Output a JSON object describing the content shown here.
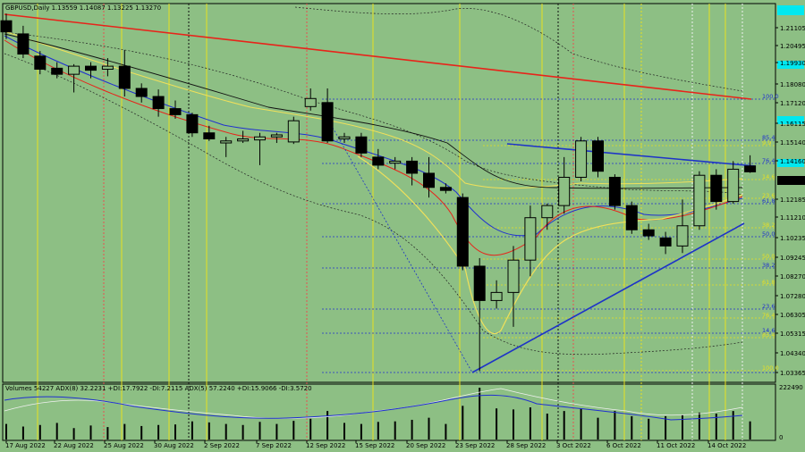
{
  "chart_data": {
    "type": "candlestick",
    "title": "GBPUSD,Daily  1.13559 1.14087 1.13225 1.13270",
    "current_price_label": "1.13270",
    "price_ticks": [
      "1.21105",
      "1.20495",
      "1.19930",
      "1.19370",
      "1.18080",
      "1.17120",
      "1.16115",
      "1.15140",
      "1.14160",
      "1.13270",
      "1.12185",
      "1.11210",
      "1.10235",
      "1.09245",
      "1.08270",
      "1.07280",
      "1.06305",
      "1.05315",
      "1.04340",
      "1.03365"
    ],
    "date_ticks": [
      "17 Aug 2022",
      "22 Aug 2022",
      "25 Aug 2022",
      "30 Aug 2022",
      "2 Sep 2022",
      "7 Sep 2022",
      "12 Sep 2022",
      "15 Sep 2022",
      "20 Sep 2022",
      "23 Sep 2022",
      "28 Sep 2022",
      "3 Oct 2022",
      "6 Oct 2022",
      "11 Oct 2022",
      "14 Oct 2022"
    ],
    "candles": [
      {
        "o": 1.2075,
        "h": 1.211,
        "l": 1.1985,
        "c": 1.202
      },
      {
        "o": 1.201,
        "h": 1.205,
        "l": 1.189,
        "c": 1.191
      },
      {
        "o": 1.19,
        "h": 1.1925,
        "l": 1.181,
        "c": 1.1835
      },
      {
        "o": 1.184,
        "h": 1.187,
        "l": 1.179,
        "c": 1.181
      },
      {
        "o": 1.181,
        "h": 1.186,
        "l": 1.172,
        "c": 1.185
      },
      {
        "o": 1.185,
        "h": 1.187,
        "l": 1.179,
        "c": 1.183
      },
      {
        "o": 1.1835,
        "h": 1.189,
        "l": 1.18,
        "c": 1.185
      },
      {
        "o": 1.185,
        "h": 1.193,
        "l": 1.17,
        "c": 1.174
      },
      {
        "o": 1.174,
        "h": 1.1765,
        "l": 1.167,
        "c": 1.17
      },
      {
        "o": 1.17,
        "h": 1.1735,
        "l": 1.16,
        "c": 1.164
      },
      {
        "o": 1.164,
        "h": 1.168,
        "l": 1.159,
        "c": 1.161
      },
      {
        "o": 1.161,
        "h": 1.162,
        "l": 1.15,
        "c": 1.152
      },
      {
        "o": 1.152,
        "h": 1.1555,
        "l": 1.148,
        "c": 1.149
      },
      {
        "o": 1.147,
        "h": 1.15,
        "l": 1.14,
        "c": 1.148
      },
      {
        "o": 1.148,
        "h": 1.153,
        "l": 1.147,
        "c": 1.149
      },
      {
        "o": 1.1485,
        "h": 1.152,
        "l": 1.136,
        "c": 1.15
      },
      {
        "o": 1.15,
        "h": 1.152,
        "l": 1.147,
        "c": 1.151
      },
      {
        "o": 1.1475,
        "h": 1.16,
        "l": 1.1465,
        "c": 1.158
      },
      {
        "o": 1.165,
        "h": 1.174,
        "l": 1.163,
        "c": 1.169
      },
      {
        "o": 1.167,
        "h": 1.174,
        "l": 1.147,
        "c": 1.148
      },
      {
        "o": 1.149,
        "h": 1.152,
        "l": 1.147,
        "c": 1.15
      },
      {
        "o": 1.15,
        "h": 1.152,
        "l": 1.14,
        "c": 1.142
      },
      {
        "o": 1.14,
        "h": 1.144,
        "l": 1.134,
        "c": 1.136
      },
      {
        "o": 1.137,
        "h": 1.14,
        "l": 1.134,
        "c": 1.138
      },
      {
        "o": 1.138,
        "h": 1.14,
        "l": 1.126,
        "c": 1.132
      },
      {
        "o": 1.132,
        "h": 1.14,
        "l": 1.12,
        "c": 1.125
      },
      {
        "o": 1.125,
        "h": 1.127,
        "l": 1.122,
        "c": 1.1235
      },
      {
        "o": 1.12,
        "h": 1.122,
        "l": 1.084,
        "c": 1.086
      },
      {
        "o": 1.086,
        "h": 1.09,
        "l": 1.034,
        "c": 1.069
      },
      {
        "o": 1.069,
        "h": 1.079,
        "l": 1.065,
        "c": 1.073
      },
      {
        "o": 1.073,
        "h": 1.096,
        "l": 1.056,
        "c": 1.089
      },
      {
        "o": 1.089,
        "h": 1.116,
        "l": 1.081,
        "c": 1.11
      },
      {
        "o": 1.11,
        "h": 1.117,
        "l": 1.104,
        "c": 1.116
      },
      {
        "o": 1.116,
        "h": 1.14,
        "l": 1.112,
        "c": 1.13
      },
      {
        "o": 1.13,
        "h": 1.15,
        "l": 1.128,
        "c": 1.148
      },
      {
        "o": 1.148,
        "h": 1.15,
        "l": 1.13,
        "c": 1.133
      },
      {
        "o": 1.13,
        "h": 1.1315,
        "l": 1.114,
        "c": 1.116
      },
      {
        "o": 1.116,
        "h": 1.118,
        "l": 1.102,
        "c": 1.104
      },
      {
        "o": 1.104,
        "h": 1.107,
        "l": 1.099,
        "c": 1.101
      },
      {
        "o": 1.1,
        "h": 1.103,
        "l": 1.092,
        "c": 1.096
      },
      {
        "o": 1.096,
        "h": 1.119,
        "l": 1.0925,
        "c": 1.106
      },
      {
        "o": 1.106,
        "h": 1.133,
        "l": 1.104,
        "c": 1.131
      },
      {
        "o": 1.131,
        "h": 1.134,
        "l": 1.114,
        "c": 1.118
      },
      {
        "o": 1.118,
        "h": 1.138,
        "l": 1.117,
        "c": 1.134
      },
      {
        "o": 1.1356,
        "h": 1.1409,
        "l": 1.1322,
        "c": 1.1327
      }
    ],
    "volumes": [
      0.3,
      0.25,
      0.28,
      0.32,
      0.22,
      0.27,
      0.24,
      0.3,
      0.26,
      0.28,
      0.29,
      0.35,
      0.33,
      0.3,
      0.28,
      0.34,
      0.3,
      0.36,
      0.4,
      0.55,
      0.32,
      0.3,
      0.34,
      0.35,
      0.38,
      0.42,
      0.3,
      0.65,
      1.0,
      0.6,
      0.58,
      0.62,
      0.5,
      0.55,
      0.6,
      0.42,
      0.55,
      0.45,
      0.4,
      0.45,
      0.48,
      0.52,
      0.5,
      0.55,
      0.35
    ],
    "volume_info": "Volumes 54227  ADX(8) 32.2231 +DI:17.7922 -DI:7.2115  ADX(5) 57.2240 +DI:15.9066 -DI:3.5720",
    "volume_max_label": "222490",
    "volume_zero_label": "0",
    "fib_labels_blue": [
      "100.0",
      "85.4",
      "76.4",
      "61.8",
      "50.0",
      "38.2",
      "23.6",
      "14.6"
    ],
    "fib_labels_yellow": [
      "9.9",
      "14.6",
      "23.6",
      "38.2",
      "50.0",
      "61.8",
      "76.4",
      "85.4",
      "100.0"
    ]
  },
  "colors": {
    "background": "#8dbf84",
    "red_trendline": "#e8231a",
    "blue_trendline": "#1d33c8",
    "highlight_band": "#00e8f0",
    "fib_blue": "#2030d0",
    "fib_yellow": "#e8e020"
  }
}
